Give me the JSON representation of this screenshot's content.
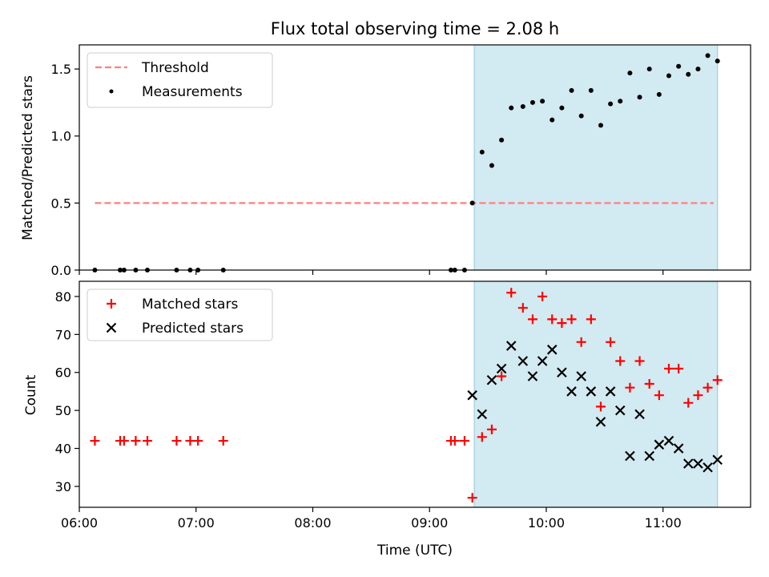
{
  "chart_data": [
    {
      "type": "scatter",
      "title": "Flux total observing time = 2.08 h",
      "ylabel": "Matched/Predicted stars",
      "xlabel": "",
      "x_unit": "hours UTC",
      "xlim": [
        "06:00",
        "11:45"
      ],
      "ylim": [
        0,
        1.68
      ],
      "yticks": [
        "0.0",
        "0.5",
        "1.0",
        "1.5"
      ],
      "observing_window": [
        "09:23",
        "11:28"
      ],
      "legend_position": "top-left",
      "threshold": {
        "name": "Threshold",
        "color": "#ff7f7f",
        "y": 0.5,
        "x_range": [
          "06:08",
          "11:26"
        ]
      },
      "series": [
        {
          "name": "Measurements",
          "color": "#000000",
          "marker": "dot",
          "points": [
            [
              "06:08",
              0
            ],
            [
              "06:21",
              0
            ],
            [
              "06:23",
              0
            ],
            [
              "06:29",
              0
            ],
            [
              "06:35",
              0
            ],
            [
              "06:50",
              0
            ],
            [
              "06:57",
              0
            ],
            [
              "07:01",
              0
            ],
            [
              "07:14",
              0
            ],
            [
              "09:11",
              0
            ],
            [
              "09:13",
              0
            ],
            [
              "09:18",
              0
            ],
            [
              "09:22",
              0.5
            ],
            [
              "09:27",
              0.88
            ],
            [
              "09:32",
              0.78
            ],
            [
              "09:37",
              0.97
            ],
            [
              "09:42",
              1.21
            ],
            [
              "09:48",
              1.22
            ],
            [
              "09:53",
              1.25
            ],
            [
              "09:58",
              1.26
            ],
            [
              "10:03",
              1.12
            ],
            [
              "10:08",
              1.21
            ],
            [
              "10:13",
              1.34
            ],
            [
              "10:18",
              1.15
            ],
            [
              "10:23",
              1.34
            ],
            [
              "10:28",
              1.08
            ],
            [
              "10:33",
              1.24
            ],
            [
              "10:38",
              1.26
            ],
            [
              "10:43",
              1.47
            ],
            [
              "10:48",
              1.29
            ],
            [
              "10:53",
              1.5
            ],
            [
              "10:58",
              1.31
            ],
            [
              "11:03",
              1.45
            ],
            [
              "11:08",
              1.52
            ],
            [
              "11:13",
              1.46
            ],
            [
              "11:18",
              1.5
            ],
            [
              "11:23",
              1.6
            ],
            [
              "11:28",
              1.56
            ]
          ]
        }
      ]
    },
    {
      "type": "scatter",
      "title": "",
      "ylabel": "Count",
      "xlabel": "Time (UTC)",
      "x_unit": "hours UTC",
      "xlim": [
        "06:00",
        "11:45"
      ],
      "ylim": [
        24.5,
        84
      ],
      "yticks": [
        "30",
        "40",
        "50",
        "60",
        "70",
        "80"
      ],
      "xticks": [
        "06:00",
        "07:00",
        "08:00",
        "09:00",
        "10:00",
        "11:00"
      ],
      "observing_window": [
        "09:23",
        "11:28"
      ],
      "legend_position": "top-left",
      "series": [
        {
          "name": "Matched stars",
          "color": "#ff0000",
          "marker": "plus",
          "points": [
            [
              "06:08",
              42
            ],
            [
              "06:21",
              42
            ],
            [
              "06:23",
              42
            ],
            [
              "06:29",
              42
            ],
            [
              "06:35",
              42
            ],
            [
              "06:50",
              42
            ],
            [
              "06:57",
              42
            ],
            [
              "07:01",
              42
            ],
            [
              "07:14",
              42
            ],
            [
              "09:11",
              42
            ],
            [
              "09:13",
              42
            ],
            [
              "09:18",
              42
            ],
            [
              "09:22",
              27
            ],
            [
              "09:27",
              43
            ],
            [
              "09:32",
              45
            ],
            [
              "09:37",
              59
            ],
            [
              "09:42",
              81
            ],
            [
              "09:48",
              77
            ],
            [
              "09:53",
              74
            ],
            [
              "09:58",
              80
            ],
            [
              "10:03",
              74
            ],
            [
              "10:08",
              73
            ],
            [
              "10:13",
              74
            ],
            [
              "10:18",
              68
            ],
            [
              "10:23",
              74
            ],
            [
              "10:28",
              51
            ],
            [
              "10:33",
              68
            ],
            [
              "10:38",
              63
            ],
            [
              "10:43",
              56
            ],
            [
              "10:48",
              63
            ],
            [
              "10:53",
              57
            ],
            [
              "10:58",
              54
            ],
            [
              "11:03",
              61
            ],
            [
              "11:08",
              61
            ],
            [
              "11:13",
              52
            ],
            [
              "11:18",
              54
            ],
            [
              "11:23",
              56
            ],
            [
              "11:28",
              58
            ]
          ]
        },
        {
          "name": "Predicted stars",
          "color": "#000000",
          "marker": "x",
          "points": [
            [
              "09:22",
              54
            ],
            [
              "09:27",
              49
            ],
            [
              "09:32",
              58
            ],
            [
              "09:37",
              61
            ],
            [
              "09:42",
              67
            ],
            [
              "09:48",
              63
            ],
            [
              "09:53",
              59
            ],
            [
              "09:58",
              63
            ],
            [
              "10:03",
              66
            ],
            [
              "10:08",
              60
            ],
            [
              "10:13",
              55
            ],
            [
              "10:18",
              59
            ],
            [
              "10:23",
              55
            ],
            [
              "10:28",
              47
            ],
            [
              "10:33",
              55
            ],
            [
              "10:38",
              50
            ],
            [
              "10:43",
              38
            ],
            [
              "10:48",
              49
            ],
            [
              "10:53",
              38
            ],
            [
              "10:58",
              41
            ],
            [
              "11:03",
              42
            ],
            [
              "11:08",
              40
            ],
            [
              "11:13",
              36
            ],
            [
              "11:18",
              36
            ],
            [
              "11:23",
              35
            ],
            [
              "11:28",
              37
            ]
          ]
        }
      ]
    }
  ],
  "colors": {
    "window": "#add8e6",
    "frame": "#000000"
  }
}
